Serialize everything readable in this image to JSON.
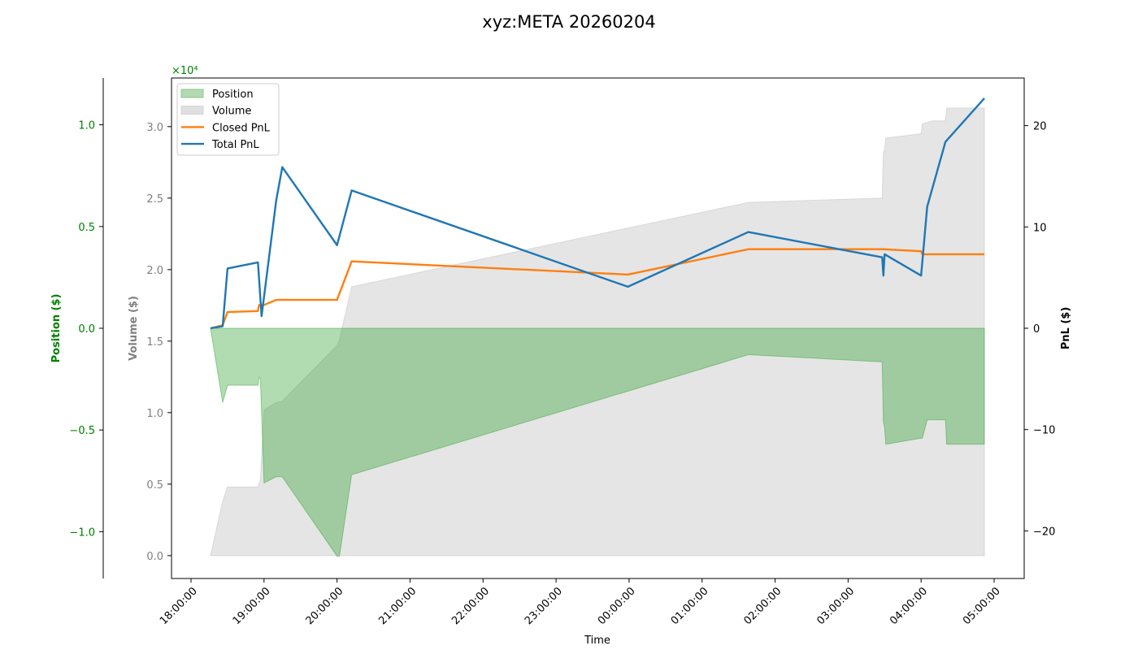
{
  "chart_data": {
    "type": "area",
    "title": "xyz:META 20260204",
    "xlabel": "Time",
    "x_ticks": [
      "18:00:00",
      "19:00:00",
      "20:00:00",
      "21:00:00",
      "22:00:00",
      "23:00:00",
      "00:00:00",
      "01:00:00",
      "02:00:00",
      "03:00:00",
      "04:00:00",
      "05:00:00"
    ],
    "axes": {
      "position": {
        "label": "Position ($)",
        "ylim": [
          -1.23,
          1.23
        ],
        "ticks": [
          "−1.0",
          "−0.5",
          "0.0",
          "0.5",
          "1.0"
        ],
        "tick_values": [
          -1.0,
          -0.5,
          0.0,
          0.5,
          1.0
        ],
        "multiplier": "×10⁴",
        "color": "#008000"
      },
      "volume": {
        "label": "Volume ($)",
        "ylim": [
          -1600,
          33400
        ],
        "ticks": [
          "0.0",
          "0.5",
          "1.0",
          "1.5",
          "2.0",
          "2.5",
          "3.0"
        ],
        "tick_values": [
          0,
          5000,
          10000,
          15000,
          20000,
          25000,
          30000
        ],
        "color": "#808080"
      },
      "pnl": {
        "label": "PnL ($)",
        "ylim": [
          -24.7,
          24.7
        ],
        "ticks": [
          "−20",
          "−10",
          "0",
          "10",
          "20"
        ],
        "tick_values": [
          -20,
          -10,
          0,
          10,
          20
        ],
        "color": "#000000"
      }
    },
    "legend": {
      "placement": "upper left",
      "entries": [
        {
          "label": "Position",
          "kind": "patch",
          "color": "#b2d9b2"
        },
        {
          "label": "Volume",
          "kind": "patch",
          "color": "#e0e0e0"
        },
        {
          "label": "Closed PnL",
          "kind": "line",
          "color": "#ff7f0e"
        },
        {
          "label": "Total PnL",
          "kind": "line",
          "color": "#1f77b4"
        }
      ]
    },
    "series": [
      {
        "name": "Position",
        "type": "area",
        "axis": "position",
        "color": "#2ca02c",
        "x": [
          "18:16",
          "18:26",
          "18:30",
          "18:55",
          "18:56",
          "18:57",
          "19:00",
          "19:10",
          "19:15",
          "20:00",
          "20:02",
          "20:12",
          "01:38",
          "03:28",
          "03:29",
          "03:30",
          "03:31",
          "04:00",
          "04:01",
          "04:05",
          "04:10",
          "04:20",
          "04:21",
          "04:52"
        ],
        "y": [
          0.0,
          -0.365,
          -0.28,
          -0.28,
          -0.24,
          -0.25,
          -0.76,
          -0.73,
          -0.73,
          -1.12,
          -1.12,
          -0.72,
          -0.13,
          -0.165,
          -0.46,
          -0.49,
          -0.57,
          -0.54,
          -0.54,
          -0.45,
          -0.45,
          -0.45,
          -0.57,
          -0.57
        ]
      },
      {
        "name": "Volume",
        "type": "area",
        "axis": "volume",
        "color": "#cccccc",
        "x": [
          "18:16",
          "18:26",
          "18:30",
          "18:55",
          "18:57",
          "19:00",
          "19:10",
          "19:15",
          "20:00",
          "20:02",
          "20:12",
          "01:38",
          "03:28",
          "03:29",
          "03:30",
          "03:31",
          "04:00",
          "04:01",
          "04:05",
          "04:10",
          "04:20",
          "04:21",
          "04:52"
        ],
        "y": [
          0,
          3800,
          4800,
          4800,
          5300,
          10200,
          10700,
          10800,
          14700,
          15100,
          18800,
          24700,
          25000,
          28200,
          28400,
          29200,
          29500,
          30200,
          30300,
          30400,
          30400,
          31300,
          31300
        ]
      },
      {
        "name": "Closed PnL",
        "type": "line",
        "axis": "pnl",
        "color": "#ff7f0e",
        "x": [
          "18:16",
          "18:26",
          "18:30",
          "18:55",
          "18:56",
          "19:00",
          "19:10",
          "19:15",
          "20:00",
          "20:12",
          "23:59",
          "01:38",
          "03:28",
          "04:00",
          "04:01",
          "04:52"
        ],
        "y": [
          0.0,
          0.3,
          1.6,
          1.7,
          2.3,
          2.3,
          2.8,
          2.8,
          2.8,
          6.6,
          5.3,
          7.8,
          7.8,
          7.6,
          7.3,
          7.3
        ]
      },
      {
        "name": "Total PnL",
        "type": "line",
        "axis": "pnl",
        "color": "#1f77b4",
        "x": [
          "18:16",
          "18:26",
          "18:30",
          "18:55",
          "18:58",
          "19:10",
          "19:15",
          "20:00",
          "20:12",
          "23:59",
          "01:38",
          "03:28",
          "03:29",
          "03:30",
          "04:00",
          "04:05",
          "04:20",
          "04:52"
        ],
        "y": [
          0.0,
          0.2,
          5.9,
          6.5,
          1.2,
          12.6,
          15.9,
          8.2,
          13.6,
          4.1,
          9.5,
          7.0,
          5.2,
          7.3,
          5.2,
          12.0,
          18.4,
          22.7
        ]
      }
    ]
  }
}
